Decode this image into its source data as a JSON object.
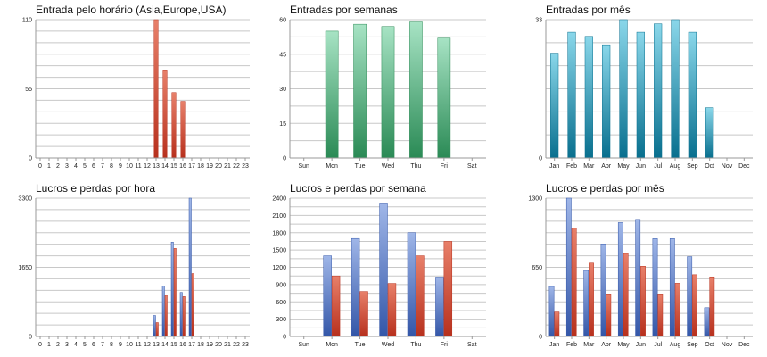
{
  "palette": {
    "red": [
      "#e8806a",
      "#b7301d"
    ],
    "green": [
      "#a7e3c4",
      "#2a8a55"
    ],
    "cyan": [
      "#8ad7ea",
      "#086f8e"
    ],
    "blue": [
      "#9fb6e8",
      "#3356a8"
    ],
    "grid": "#c8c8c8"
  },
  "chart_data": [
    {
      "type": "bar",
      "title": "Entrada pelo horário (Asia,Europe,USA)",
      "categories": [
        "0",
        "1",
        "2",
        "3",
        "4",
        "5",
        "6",
        "7",
        "8",
        "9",
        "10",
        "11",
        "12",
        "13",
        "14",
        "15",
        "16",
        "17",
        "18",
        "19",
        "20",
        "21",
        "22",
        "23"
      ],
      "yticks": [
        "0",
        "55",
        "110"
      ],
      "ylim": [
        0,
        110
      ],
      "grid": true,
      "series": [
        {
          "values": [
            0,
            0,
            0,
            0,
            0,
            0,
            0,
            0,
            0,
            0,
            0,
            0,
            0,
            110,
            70,
            52,
            45,
            0,
            0,
            0,
            0,
            0,
            0,
            0
          ],
          "color": "red"
        }
      ]
    },
    {
      "type": "bar",
      "title": "Entradas por semanas",
      "categories": [
        "Sun",
        "Mon",
        "Tue",
        "Wed",
        "Thu",
        "Fri",
        "Sat"
      ],
      "yticks": [
        "0",
        "15",
        "30",
        "45",
        "60"
      ],
      "ylim": [
        0,
        60
      ],
      "grid": true,
      "series": [
        {
          "values": [
            0,
            55,
            58,
            57,
            59,
            52,
            0
          ],
          "color": "green"
        }
      ]
    },
    {
      "type": "bar",
      "title": "Entradas por mês",
      "categories": [
        "Jan",
        "Feb",
        "Mar",
        "Apr",
        "May",
        "Jun",
        "Jul",
        "Aug",
        "Sep",
        "Oct",
        "Nov",
        "Dec"
      ],
      "yticks": [
        "0",
        "33"
      ],
      "ylim": [
        0,
        33
      ],
      "grid": true,
      "series": [
        {
          "values": [
            25,
            30,
            29,
            27,
            33,
            30,
            32,
            33,
            30,
            12,
            0,
            0
          ],
          "color": "cyan"
        }
      ]
    },
    {
      "type": "bar",
      "title": "Lucros e perdas por hora",
      "categories": [
        "0",
        "1",
        "2",
        "3",
        "4",
        "5",
        "6",
        "7",
        "8",
        "9",
        "10",
        "11",
        "12",
        "13",
        "14",
        "15",
        "16",
        "17",
        "18",
        "19",
        "20",
        "21",
        "22",
        "23"
      ],
      "yticks": [
        "0",
        "1650",
        "3300"
      ],
      "ylim": [
        0,
        3300
      ],
      "grid": true,
      "series": [
        {
          "values": [
            0,
            0,
            0,
            0,
            0,
            0,
            0,
            0,
            0,
            0,
            0,
            0,
            0,
            500,
            1200,
            2250,
            1050,
            3300,
            0,
            0,
            0,
            0,
            0,
            0
          ],
          "color": "blue"
        },
        {
          "values": [
            0,
            0,
            0,
            0,
            0,
            0,
            0,
            0,
            0,
            0,
            0,
            0,
            0,
            330,
            980,
            2100,
            950,
            1500,
            0,
            0,
            0,
            0,
            0,
            0
          ],
          "color": "red"
        }
      ]
    },
    {
      "type": "bar",
      "title": "Lucros e perdas por semana",
      "categories": [
        "Sun",
        "Mon",
        "Tue",
        "Wed",
        "Thu",
        "Fri",
        "Sat"
      ],
      "yticks": [
        "0",
        "300",
        "600",
        "900",
        "1200",
        "1500",
        "1800",
        "2100",
        "2400"
      ],
      "ylim": [
        0,
        2400
      ],
      "grid": true,
      "series": [
        {
          "values": [
            0,
            1400,
            1700,
            2300,
            1800,
            1030,
            0
          ],
          "color": "blue"
        },
        {
          "values": [
            0,
            1050,
            780,
            920,
            1400,
            1650,
            0
          ],
          "color": "red"
        }
      ]
    },
    {
      "type": "bar",
      "title": "Lucros e perdas por mês",
      "categories": [
        "Jan",
        "Feb",
        "Mar",
        "Apr",
        "May",
        "Jun",
        "Jul",
        "Aug",
        "Sep",
        "Oct",
        "Nov",
        "Dec"
      ],
      "yticks": [
        "0",
        "650",
        "1300"
      ],
      "ylim": [
        0,
        1300
      ],
      "grid": true,
      "series": [
        {
          "values": [
            470,
            1300,
            620,
            870,
            1070,
            1100,
            920,
            920,
            750,
            270,
            0,
            0
          ],
          "color": "blue"
        },
        {
          "values": [
            230,
            1020,
            690,
            400,
            780,
            660,
            400,
            500,
            580,
            560,
            0,
            0
          ],
          "color": "red"
        }
      ]
    }
  ]
}
